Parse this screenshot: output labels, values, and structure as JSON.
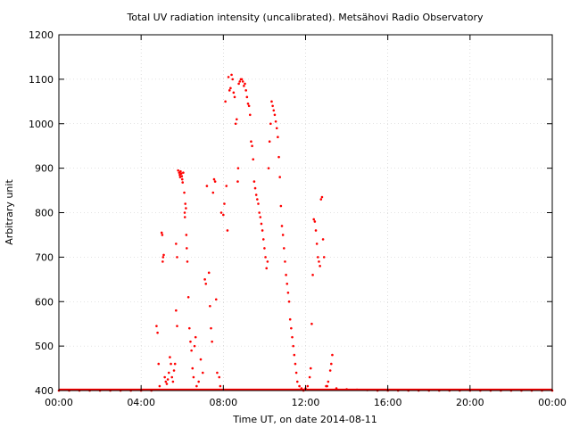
{
  "chart_data": {
    "type": "scatter",
    "title": "Total UV radiation intensity (uncalibrated). Metsähovi Radio Observatory",
    "xlabel": "Time UT, on date 2014-08-11",
    "ylabel": "Arbitrary unit",
    "x_unit": "hours UT",
    "xlim": [
      0,
      24
    ],
    "ylim": [
      400,
      1200
    ],
    "x_ticks": [
      0,
      4,
      8,
      12,
      16,
      20,
      24
    ],
    "x_tick_labels": [
      "00:00",
      "04:00",
      "08:00",
      "12:00",
      "16:00",
      "20:00",
      "00:00"
    ],
    "y_ticks": [
      400,
      500,
      600,
      700,
      800,
      900,
      1000,
      1100,
      1200
    ],
    "y_tick_labels": [
      "400",
      "500",
      "600",
      "700",
      "800",
      "900",
      "1000",
      "1100",
      "1200"
    ],
    "grid": true,
    "marker_color": "#ff0000",
    "series": [
      {
        "points": [
          [
            0.0,
            400
          ],
          [
            0.5,
            400
          ],
          [
            1.0,
            400
          ],
          [
            1.5,
            400
          ],
          [
            2.0,
            400
          ],
          [
            2.5,
            400
          ],
          [
            3.0,
            400
          ],
          [
            3.5,
            400
          ],
          [
            4.0,
            400
          ],
          [
            4.5,
            400
          ],
          [
            4.75,
            545
          ],
          [
            4.8,
            530
          ],
          [
            4.85,
            460
          ],
          [
            4.9,
            410
          ],
          [
            5.0,
            755
          ],
          [
            5.03,
            750
          ],
          [
            5.07,
            700
          ],
          [
            5.1,
            705
          ],
          [
            5.05,
            690
          ],
          [
            5.15,
            430
          ],
          [
            5.2,
            420
          ],
          [
            5.25,
            415
          ],
          [
            5.3,
            425
          ],
          [
            5.35,
            440
          ],
          [
            5.4,
            475
          ],
          [
            5.45,
            460
          ],
          [
            5.5,
            430
          ],
          [
            5.55,
            420
          ],
          [
            5.6,
            445
          ],
          [
            5.65,
            460
          ],
          [
            5.7,
            580
          ],
          [
            5.75,
            545
          ],
          [
            5.7,
            730
          ],
          [
            5.75,
            700
          ],
          [
            5.8,
            895
          ],
          [
            5.85,
            890
          ],
          [
            5.88,
            885
          ],
          [
            5.9,
            880
          ],
          [
            5.92,
            893
          ],
          [
            5.95,
            888
          ],
          [
            5.98,
            882
          ],
          [
            6.0,
            875
          ],
          [
            6.05,
            890
          ],
          [
            6.02,
            868
          ],
          [
            6.1,
            845
          ],
          [
            6.15,
            820
          ],
          [
            6.12,
            800
          ],
          [
            6.18,
            810
          ],
          [
            6.13,
            790
          ],
          [
            6.2,
            750
          ],
          [
            6.22,
            720
          ],
          [
            6.25,
            690
          ],
          [
            6.3,
            610
          ],
          [
            6.35,
            540
          ],
          [
            6.4,
            510
          ],
          [
            6.45,
            490
          ],
          [
            6.5,
            450
          ],
          [
            6.55,
            430
          ],
          [
            6.6,
            500
          ],
          [
            6.65,
            520
          ],
          [
            6.7,
            410
          ],
          [
            6.8,
            420
          ],
          [
            6.9,
            470
          ],
          [
            7.0,
            440
          ],
          [
            7.1,
            650
          ],
          [
            7.15,
            640
          ],
          [
            7.2,
            860
          ],
          [
            7.3,
            665
          ],
          [
            7.35,
            590
          ],
          [
            7.4,
            540
          ],
          [
            7.45,
            510
          ],
          [
            7.5,
            845
          ],
          [
            7.55,
            875
          ],
          [
            7.6,
            870
          ],
          [
            7.65,
            605
          ],
          [
            7.7,
            440
          ],
          [
            7.8,
            430
          ],
          [
            7.85,
            410
          ],
          [
            7.9,
            800
          ],
          [
            8.0,
            795
          ],
          [
            8.05,
            820
          ],
          [
            8.1,
            1050
          ],
          [
            8.15,
            860
          ],
          [
            8.2,
            760
          ],
          [
            8.25,
            1105
          ],
          [
            8.3,
            1075
          ],
          [
            8.35,
            1080
          ],
          [
            8.4,
            1110
          ],
          [
            8.45,
            1100
          ],
          [
            8.5,
            1070
          ],
          [
            8.55,
            1060
          ],
          [
            8.6,
            1000
          ],
          [
            8.65,
            1010
          ],
          [
            8.7,
            870
          ],
          [
            8.72,
            900
          ],
          [
            8.75,
            1090
          ],
          [
            8.8,
            1095
          ],
          [
            8.85,
            1100
          ],
          [
            8.9,
            1100
          ],
          [
            8.95,
            1095
          ],
          [
            9.0,
            1085
          ],
          [
            9.05,
            1090
          ],
          [
            9.1,
            1075
          ],
          [
            9.15,
            1060
          ],
          [
            9.2,
            1045
          ],
          [
            9.25,
            1040
          ],
          [
            9.3,
            1020
          ],
          [
            9.35,
            960
          ],
          [
            9.4,
            950
          ],
          [
            9.45,
            920
          ],
          [
            9.5,
            870
          ],
          [
            9.55,
            855
          ],
          [
            9.6,
            840
          ],
          [
            9.65,
            830
          ],
          [
            9.7,
            820
          ],
          [
            9.75,
            800
          ],
          [
            9.8,
            790
          ],
          [
            9.85,
            775
          ],
          [
            9.9,
            760
          ],
          [
            9.95,
            740
          ],
          [
            10.0,
            720
          ],
          [
            10.05,
            700
          ],
          [
            10.1,
            675
          ],
          [
            10.15,
            690
          ],
          [
            10.2,
            900
          ],
          [
            10.25,
            960
          ],
          [
            10.3,
            1000
          ],
          [
            10.35,
            1050
          ],
          [
            10.4,
            1040
          ],
          [
            10.45,
            1030
          ],
          [
            10.5,
            1020
          ],
          [
            10.55,
            1005
          ],
          [
            10.6,
            990
          ],
          [
            10.65,
            970
          ],
          [
            10.7,
            925
          ],
          [
            10.75,
            880
          ],
          [
            10.8,
            815
          ],
          [
            10.85,
            770
          ],
          [
            10.9,
            750
          ],
          [
            10.95,
            720
          ],
          [
            11.0,
            690
          ],
          [
            11.05,
            660
          ],
          [
            11.1,
            640
          ],
          [
            11.15,
            620
          ],
          [
            11.2,
            600
          ],
          [
            11.25,
            560
          ],
          [
            11.3,
            540
          ],
          [
            11.35,
            520
          ],
          [
            11.4,
            500
          ],
          [
            11.45,
            480
          ],
          [
            11.5,
            460
          ],
          [
            11.55,
            440
          ],
          [
            11.6,
            420
          ],
          [
            11.7,
            410
          ],
          [
            11.8,
            405
          ],
          [
            11.9,
            400
          ],
          [
            12.0,
            405
          ],
          [
            12.1,
            410
          ],
          [
            12.2,
            430
          ],
          [
            12.25,
            450
          ],
          [
            12.3,
            550
          ],
          [
            12.35,
            660
          ],
          [
            12.4,
            785
          ],
          [
            12.45,
            780
          ],
          [
            12.5,
            760
          ],
          [
            12.55,
            730
          ],
          [
            12.6,
            700
          ],
          [
            12.65,
            690
          ],
          [
            12.7,
            680
          ],
          [
            12.75,
            830
          ],
          [
            12.8,
            835
          ],
          [
            12.85,
            740
          ],
          [
            12.9,
            700
          ],
          [
            13.0,
            410
          ],
          [
            13.05,
            410
          ],
          [
            13.1,
            420
          ],
          [
            13.2,
            445
          ],
          [
            13.25,
            460
          ],
          [
            13.3,
            480
          ],
          [
            13.5,
            405
          ],
          [
            14.0,
            403
          ],
          [
            14.5,
            402
          ],
          [
            15.0,
            401
          ],
          [
            15.5,
            400
          ],
          [
            16.0,
            400
          ],
          [
            16.5,
            400
          ],
          [
            17.0,
            400
          ],
          [
            17.5,
            400
          ],
          [
            18.0,
            400
          ],
          [
            18.5,
            400
          ],
          [
            19.0,
            400
          ],
          [
            19.5,
            400
          ],
          [
            20.0,
            400
          ],
          [
            20.5,
            400
          ],
          [
            21.0,
            400
          ],
          [
            21.5,
            400
          ],
          [
            22.0,
            400
          ],
          [
            22.5,
            400
          ],
          [
            23.0,
            400
          ],
          [
            23.5,
            400
          ],
          [
            24.0,
            400
          ]
        ]
      }
    ]
  }
}
